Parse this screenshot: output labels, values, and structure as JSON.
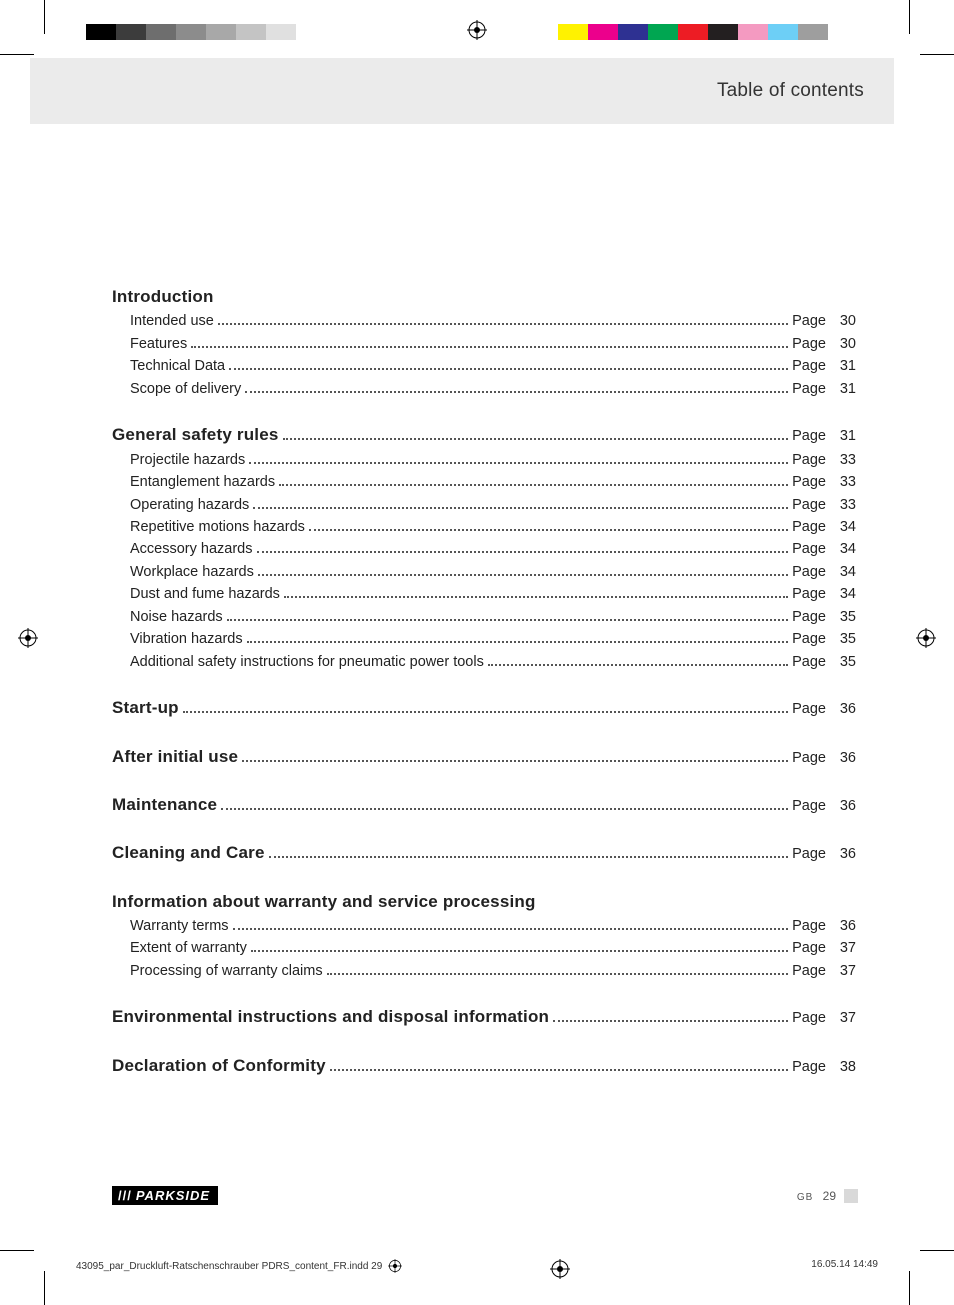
{
  "print": {
    "left_grays": [
      "#000000",
      "#3c3c3c",
      "#6e6e6e",
      "#8c8c8c",
      "#a8a8a8",
      "#c4c4c4",
      "#e0e0e0",
      "#ffffff"
    ],
    "right_colors": [
      "#fff200",
      "#ec008c",
      "#2e3192",
      "#00a651",
      "#ed1c24",
      "#231f20",
      "#f49ac1",
      "#6dcff6",
      "#9e9e9e"
    ]
  },
  "header": {
    "title": "Table of contents"
  },
  "toc": {
    "page_prefix": "Page",
    "sections": [
      {
        "title": "Introduction",
        "page": null,
        "items": [
          {
            "label": "Intended use",
            "page": 30
          },
          {
            "label": "Features",
            "page": 30
          },
          {
            "label": "Technical Data",
            "page": 31
          },
          {
            "label": "Scope of delivery",
            "page": 31
          }
        ]
      },
      {
        "title": "General safety rules",
        "page": 31,
        "items": [
          {
            "label": "Projectile hazards",
            "page": 33
          },
          {
            "label": "Entanglement hazards",
            "page": 33
          },
          {
            "label": "Operating hazards",
            "page": 33
          },
          {
            "label": "Repetitive motions hazards",
            "page": 34
          },
          {
            "label": "Accessory hazards",
            "page": 34
          },
          {
            "label": "Workplace hazards",
            "page": 34
          },
          {
            "label": "Dust and fume hazards",
            "page": 34
          },
          {
            "label": "Noise hazards",
            "page": 35
          },
          {
            "label": "Vibration hazards",
            "page": 35
          },
          {
            "label": "Additional safety instructions for pneumatic power tools",
            "page": 35
          }
        ]
      },
      {
        "title": "Start-up",
        "page": 36,
        "items": []
      },
      {
        "title": "After initial use",
        "page": 36,
        "items": []
      },
      {
        "title": "Maintenance",
        "page": 36,
        "items": []
      },
      {
        "title": "Cleaning and Care",
        "page": 36,
        "items": []
      },
      {
        "title": "Information about warranty and service processing",
        "page": null,
        "items": [
          {
            "label": "Warranty terms",
            "page": 36
          },
          {
            "label": "Extent of warranty",
            "page": 37
          },
          {
            "label": "Processing of warranty claims",
            "page": 37
          }
        ]
      },
      {
        "title": "Environmental instructions and disposal information",
        "page": 37,
        "items": []
      },
      {
        "title": "Declaration of Conformity",
        "page": 38,
        "items": []
      }
    ]
  },
  "footer": {
    "brand_slashes": "///",
    "brand_name": "PARKSIDE",
    "country": "GB",
    "page_number": "29"
  },
  "imprint": {
    "file": "43095_par_Druckluft-Ratschenschrauber PDRS_content_FR.indd   29",
    "datetime": "16.05.14   14:49"
  }
}
